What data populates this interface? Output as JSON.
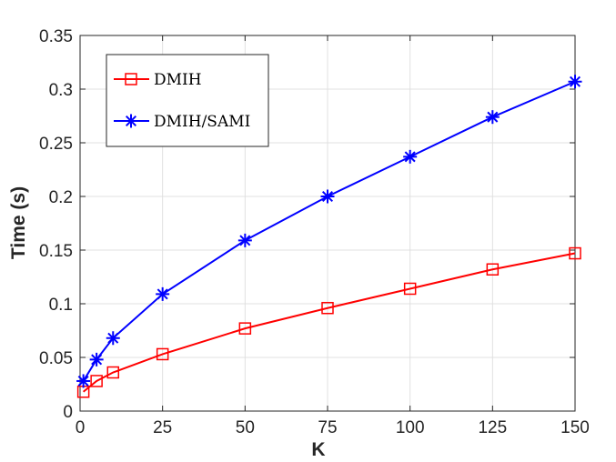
{
  "chart_data": {
    "type": "line",
    "xlabel": "K",
    "ylabel": "Time (s)",
    "xlim": [
      0,
      150
    ],
    "ylim": [
      0,
      0.35
    ],
    "xticks": [
      0,
      25,
      50,
      75,
      100,
      125,
      150
    ],
    "yticks": [
      0,
      0.05,
      0.1,
      0.15,
      0.2,
      0.25,
      0.3,
      0.35
    ],
    "grid": true,
    "legend_position": "top-left",
    "x": [
      1,
      5,
      10,
      25,
      50,
      75,
      100,
      125,
      150
    ],
    "series": [
      {
        "name": "DMIH",
        "color": "#ff0000",
        "marker": "square",
        "values": [
          0.018,
          0.028,
          0.036,
          0.053,
          0.077,
          0.096,
          0.114,
          0.132,
          0.147
        ]
      },
      {
        "name": "DMIH/SAMI",
        "color": "#0000ff",
        "marker": "asterisk",
        "values": [
          0.028,
          0.048,
          0.068,
          0.109,
          0.159,
          0.2,
          0.237,
          0.274,
          0.307
        ]
      }
    ]
  }
}
